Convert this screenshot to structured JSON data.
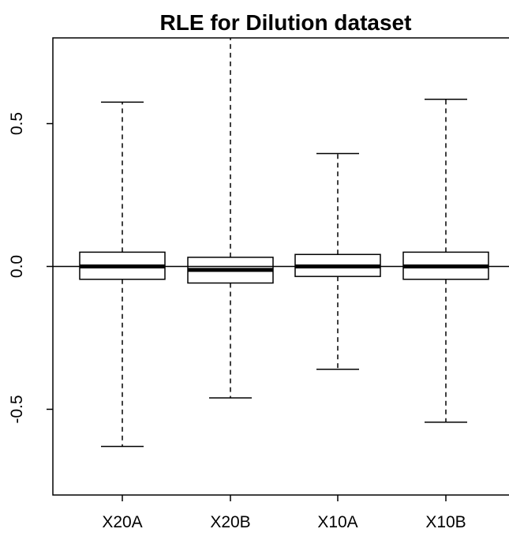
{
  "chart_data": {
    "type": "boxplot",
    "title": "RLE for Dilution dataset",
    "xlabel": "",
    "ylabel": "",
    "categories": [
      "X20A",
      "X20B",
      "X10A",
      "X10B"
    ],
    "boxes": [
      {
        "name": "X20A",
        "whisker_low": -0.63,
        "q1": -0.045,
        "median": 0.0,
        "q3": 0.05,
        "whisker_high": 0.575
      },
      {
        "name": "X20B",
        "whisker_low": -0.46,
        "q1": -0.058,
        "median": -0.012,
        "q3": 0.032,
        "whisker_high": 0.82
      },
      {
        "name": "X10A",
        "whisker_low": -0.36,
        "q1": -0.035,
        "median": 0.0,
        "q3": 0.042,
        "whisker_high": 0.395
      },
      {
        "name": "X10B",
        "whisker_low": -0.545,
        "q1": -0.045,
        "median": 0.0,
        "q3": 0.05,
        "whisker_high": 0.585
      }
    ],
    "reference_line": 0.0,
    "ylim": [
      -0.8,
      0.8
    ],
    "yticks": [
      -0.5,
      0.0,
      0.5
    ],
    "ytick_labels": [
      "-0.5",
      "0.0",
      "0.5"
    ],
    "grid": false,
    "legend": "none",
    "colors": {
      "box_fill": "#ffffff",
      "stroke": "#000000"
    }
  }
}
